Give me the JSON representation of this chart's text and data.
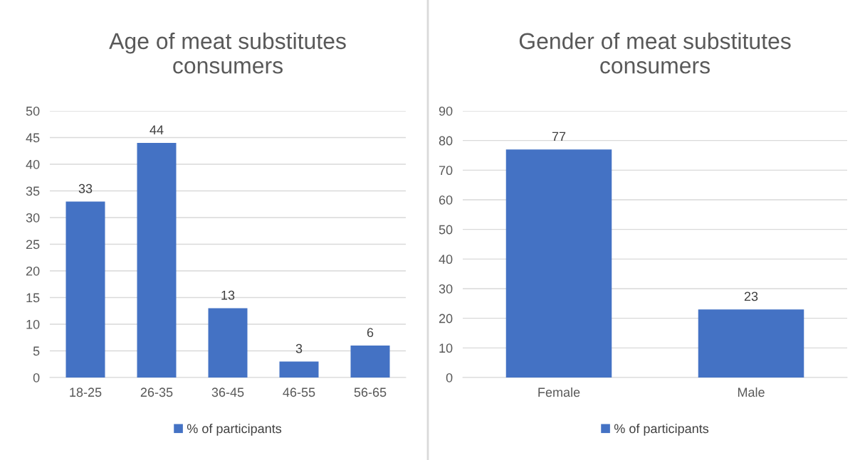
{
  "chart_data": [
    {
      "type": "bar",
      "title": "Age of meat substitutes\nconsumers",
      "categories": [
        "18-25",
        "26-35",
        "36-45",
        "46-55",
        "56-65"
      ],
      "series": [
        {
          "name": "% of participants",
          "color": "#4472c4",
          "values": [
            33,
            44,
            13,
            3,
            6
          ]
        }
      ],
      "ylim": [
        0,
        50
      ],
      "yticks": [
        0,
        5,
        10,
        15,
        20,
        25,
        30,
        35,
        40,
        45,
        50
      ],
      "grid": "y",
      "legend": "bottom",
      "data_labels": true
    },
    {
      "type": "bar",
      "title": "Gender of meat substitutes\nconsumers",
      "categories": [
        "Female",
        "Male"
      ],
      "series": [
        {
          "name": "% of participants",
          "color": "#4472c4",
          "values": [
            77,
            23
          ]
        }
      ],
      "ylim": [
        0,
        90
      ],
      "yticks": [
        0,
        10,
        20,
        30,
        40,
        50,
        60,
        70,
        80,
        90
      ],
      "grid": "y",
      "legend": "bottom",
      "data_labels": true
    }
  ]
}
